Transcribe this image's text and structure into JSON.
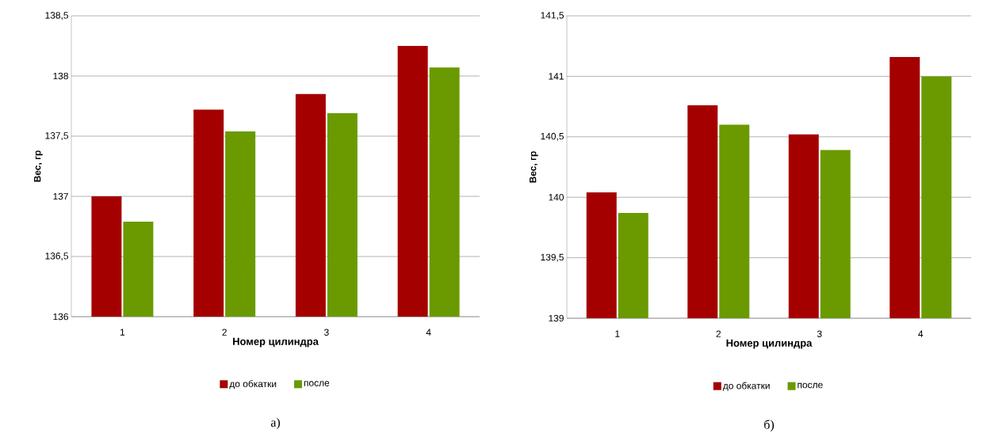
{
  "chart_data": [
    {
      "type": "bar",
      "xlabel": "Номер цилиндра",
      "ylabel": "Вес, гр",
      "categories": [
        "1",
        "2",
        "3",
        "4"
      ],
      "series": [
        {
          "name": "до обкатки",
          "color": "#a50000",
          "values": [
            137.0,
            137.72,
            137.85,
            138.25
          ]
        },
        {
          "name": "после",
          "color": "#6a9a00",
          "values": [
            136.79,
            137.54,
            137.69,
            138.07
          ]
        }
      ],
      "ylim": [
        136,
        138.5
      ],
      "yticks": [
        136,
        {
          "value": 136.5,
          "label": "136,5"
        },
        137,
        {
          "value": 137.5,
          "label": "137,5"
        },
        138,
        {
          "value": 138.5,
          "label": "138,5"
        }
      ],
      "grid": "y",
      "legend": "bottom",
      "annotations": [
        "а)"
      ]
    },
    {
      "type": "bar",
      "xlabel": "Номер цилиндра",
      "ylabel": "Вес, гр",
      "categories": [
        "1",
        "2",
        "3",
        "4"
      ],
      "series": [
        {
          "name": "до обкатки",
          "color": "#a50000",
          "values": [
            140.04,
            140.76,
            140.52,
            141.16
          ]
        },
        {
          "name": "после",
          "color": "#6a9a00",
          "values": [
            139.87,
            140.6,
            140.39,
            141.0
          ]
        }
      ],
      "ylim": [
        139,
        141.5
      ],
      "yticks": [
        139,
        {
          "value": 139.5,
          "label": "139,5"
        },
        140,
        {
          "value": 140.5,
          "label": "140,5"
        },
        141,
        {
          "value": 141.5,
          "label": "141,5"
        }
      ],
      "grid": "y",
      "legend": "bottom",
      "annotations": [
        "б)"
      ]
    }
  ]
}
